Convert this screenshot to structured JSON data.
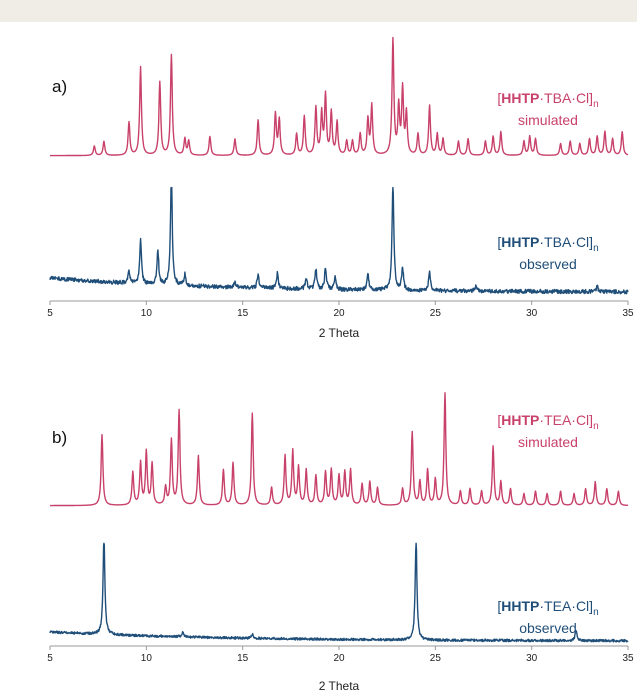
{
  "chart_data": [
    {
      "type": "line",
      "panel_label": "a)",
      "xlabel": "2 Theta",
      "xlim": [
        5,
        35
      ],
      "xticks": [
        5,
        10,
        15,
        20,
        25,
        30,
        35
      ],
      "ylim": [
        0,
        1.0
      ],
      "series": [
        {
          "name": "[HHTP·TBA·Cl]n simulated",
          "label_parts": [
            "[",
            "HHTP",
            "·TBA·Cl]",
            "n"
          ],
          "label_line2": "simulated",
          "color": "#c8416a",
          "baseline": 0.02,
          "noise": 0.0,
          "peaks": [
            [
              7.3,
              0.08
            ],
            [
              7.8,
              0.12
            ],
            [
              9.1,
              0.28
            ],
            [
              9.7,
              0.75
            ],
            [
              10.7,
              0.62
            ],
            [
              11.3,
              0.85
            ],
            [
              12.0,
              0.14
            ],
            [
              12.2,
              0.12
            ],
            [
              13.3,
              0.16
            ],
            [
              14.6,
              0.14
            ],
            [
              15.8,
              0.3
            ],
            [
              16.7,
              0.35
            ],
            [
              16.9,
              0.3
            ],
            [
              17.8,
              0.18
            ],
            [
              18.2,
              0.33
            ],
            [
              18.8,
              0.4
            ],
            [
              19.1,
              0.35
            ],
            [
              19.3,
              0.5
            ],
            [
              19.6,
              0.36
            ],
            [
              19.9,
              0.28
            ],
            [
              20.4,
              0.12
            ],
            [
              20.7,
              0.12
            ],
            [
              21.1,
              0.18
            ],
            [
              21.5,
              0.3
            ],
            [
              21.7,
              0.42
            ],
            [
              22.8,
              1.0
            ],
            [
              23.1,
              0.4
            ],
            [
              23.3,
              0.55
            ],
            [
              23.5,
              0.35
            ],
            [
              24.1,
              0.18
            ],
            [
              24.7,
              0.42
            ],
            [
              25.1,
              0.18
            ],
            [
              25.4,
              0.14
            ],
            [
              26.2,
              0.12
            ],
            [
              26.7,
              0.14
            ],
            [
              27.6,
              0.12
            ],
            [
              28.0,
              0.16
            ],
            [
              28.4,
              0.2
            ],
            [
              29.6,
              0.12
            ],
            [
              29.9,
              0.16
            ],
            [
              30.2,
              0.14
            ],
            [
              31.5,
              0.1
            ],
            [
              32.0,
              0.12
            ],
            [
              32.5,
              0.1
            ],
            [
              33.0,
              0.14
            ],
            [
              33.4,
              0.16
            ],
            [
              33.8,
              0.2
            ],
            [
              34.2,
              0.14
            ],
            [
              34.7,
              0.2
            ]
          ]
        },
        {
          "name": "[HHTP·TBA·Cl]n observed",
          "label_parts": [
            "[",
            "HHTP",
            "·TBA·Cl]",
            "n"
          ],
          "label_line2": "observed",
          "color": "#1f4e79",
          "baseline": 0.2,
          "noise": 0.018,
          "peaks": [
            [
              9.1,
              0.1
            ],
            [
              9.7,
              0.4
            ],
            [
              10.6,
              0.3
            ],
            [
              11.3,
              1.0
            ],
            [
              12.0,
              0.1
            ],
            [
              14.6,
              0.05
            ],
            [
              15.8,
              0.12
            ],
            [
              16.8,
              0.14
            ],
            [
              18.3,
              0.1
            ],
            [
              18.8,
              0.18
            ],
            [
              19.3,
              0.2
            ],
            [
              19.8,
              0.12
            ],
            [
              21.5,
              0.15
            ],
            [
              22.8,
              1.0
            ],
            [
              23.3,
              0.2
            ],
            [
              24.7,
              0.18
            ],
            [
              27.1,
              0.05
            ],
            [
              33.4,
              0.05
            ]
          ]
        }
      ]
    },
    {
      "type": "line",
      "panel_label": "b)",
      "xlabel": "2 Theta",
      "xlim": [
        5,
        35
      ],
      "xticks": [
        5,
        10,
        15,
        20,
        25,
        30,
        35
      ],
      "ylim": [
        0,
        1.0
      ],
      "series": [
        {
          "name": "[HHTP·TEA·Cl]n simulated",
          "label_parts": [
            "[",
            "HHTP",
            "·TEA·Cl]",
            "n"
          ],
          "label_line2": "simulated",
          "color": "#c8416a",
          "baseline": 0.02,
          "noise": 0.0,
          "peaks": [
            [
              7.7,
              0.6
            ],
            [
              9.3,
              0.28
            ],
            [
              9.7,
              0.36
            ],
            [
              10.0,
              0.45
            ],
            [
              10.3,
              0.35
            ],
            [
              11.0,
              0.15
            ],
            [
              11.3,
              0.55
            ],
            [
              11.7,
              0.8
            ],
            [
              12.7,
              0.42
            ],
            [
              14.0,
              0.3
            ],
            [
              14.5,
              0.36
            ],
            [
              15.5,
              0.78
            ],
            [
              16.5,
              0.15
            ],
            [
              17.2,
              0.42
            ],
            [
              17.6,
              0.46
            ],
            [
              17.9,
              0.32
            ],
            [
              18.3,
              0.3
            ],
            [
              18.8,
              0.25
            ],
            [
              19.3,
              0.28
            ],
            [
              19.6,
              0.3
            ],
            [
              20.0,
              0.25
            ],
            [
              20.3,
              0.28
            ],
            [
              20.6,
              0.3
            ],
            [
              21.2,
              0.18
            ],
            [
              21.6,
              0.2
            ],
            [
              22.0,
              0.15
            ],
            [
              23.3,
              0.14
            ],
            [
              23.8,
              0.62
            ],
            [
              24.2,
              0.2
            ],
            [
              24.6,
              0.3
            ],
            [
              25.0,
              0.22
            ],
            [
              25.5,
              0.95
            ],
            [
              26.3,
              0.12
            ],
            [
              26.8,
              0.14
            ],
            [
              27.4,
              0.12
            ],
            [
              28.0,
              0.5
            ],
            [
              28.4,
              0.2
            ],
            [
              28.9,
              0.14
            ],
            [
              29.6,
              0.1
            ],
            [
              30.2,
              0.12
            ],
            [
              30.8,
              0.1
            ],
            [
              31.5,
              0.12
            ],
            [
              32.2,
              0.1
            ],
            [
              32.8,
              0.14
            ],
            [
              33.3,
              0.2
            ],
            [
              33.9,
              0.14
            ],
            [
              34.5,
              0.12
            ]
          ]
        },
        {
          "name": "[HHTP·TEA·Cl]n observed",
          "label_parts": [
            "[",
            "HHTP",
            "·TEA·Cl]",
            "n"
          ],
          "label_line2": "observed",
          "color": "#1f4e79",
          "baseline": 0.14,
          "noise": 0.012,
          "peaks": [
            [
              7.8,
              1.0
            ],
            [
              11.9,
              0.05
            ],
            [
              15.5,
              0.04
            ],
            [
              24.0,
              1.0
            ],
            [
              32.3,
              0.1
            ]
          ]
        }
      ]
    }
  ]
}
